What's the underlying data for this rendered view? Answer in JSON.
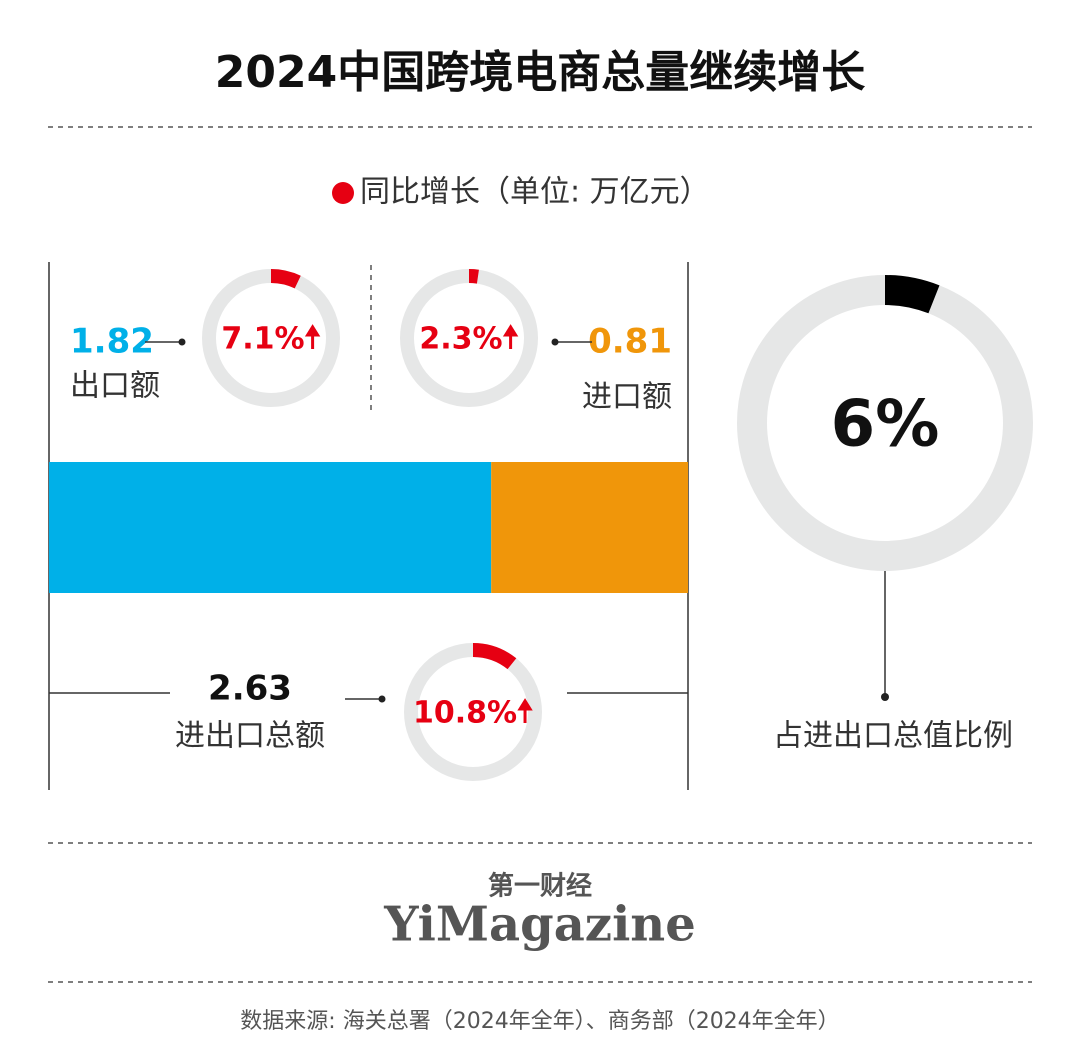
{
  "title": "2024中国跨境电商总量继续增长",
  "legend": "同比增长（单位: 万亿元）",
  "export": {
    "value": 1.82,
    "label": "出口额",
    "color": "#00b0e8",
    "growth": {
      "value": 7.1,
      "label": "7.1%"
    }
  },
  "import": {
    "value": 0.81,
    "label": "进口额",
    "color": "#f0960a",
    "growth": {
      "value": 2.3,
      "label": "2.3%"
    }
  },
  "total": {
    "value": 2.63,
    "label": "进出口总额",
    "growth": {
      "value": 10.8,
      "label": "10.8%"
    }
  },
  "growth_color": "#e60012",
  "share": {
    "value": 6,
    "label": "6%",
    "caption": "占进出口总值比例",
    "color": "#000000"
  },
  "brand": {
    "chinese": "第一财经",
    "english": "YiMagazine"
  },
  "source": "数据来源: 海关总署（2024年全年）、商务部（2024年全年）"
}
